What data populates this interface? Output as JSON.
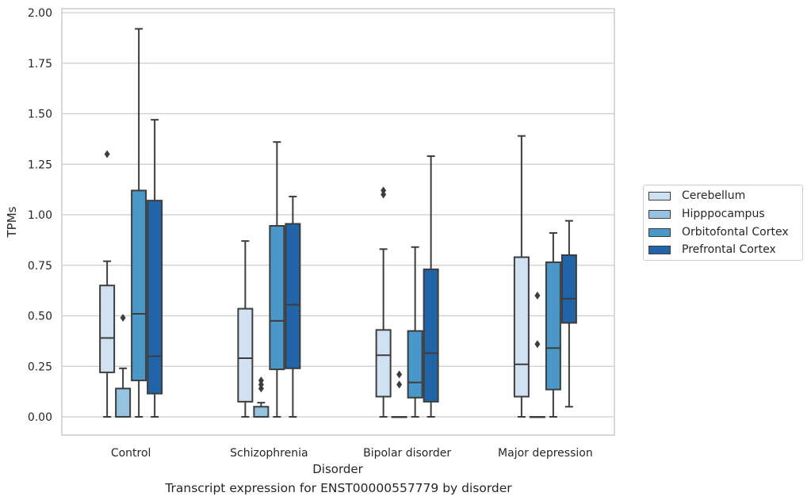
{
  "chart_data": {
    "type": "box",
    "title": "Transcript expression for ENST00000557779 by disorder",
    "xlabel": "Disorder",
    "ylabel": "TPMs",
    "ylim": [
      -0.09,
      2.02
    ],
    "yticks": [
      "0.00",
      "0.25",
      "0.50",
      "0.75",
      "1.00",
      "1.25",
      "1.50",
      "1.75",
      "2.00"
    ],
    "grid": true,
    "legend_placement": "right, outside plot",
    "categories": [
      "Control",
      "Schizophrenia",
      "Bipolar disorder",
      "Major depression"
    ],
    "series": [
      {
        "name": "Cerebellum",
        "color": "#d0e1f2",
        "boxes": [
          {
            "q1": 0.22,
            "median": 0.39,
            "q3": 0.65,
            "whisker_low": 0.0,
            "whisker_high": 0.77,
            "outliers": [
              1.3
            ]
          },
          {
            "q1": 0.075,
            "median": 0.29,
            "q3": 0.535,
            "whisker_low": 0.0,
            "whisker_high": 0.87,
            "outliers": []
          },
          {
            "q1": 0.1,
            "median": 0.305,
            "q3": 0.43,
            "whisker_low": 0.0,
            "whisker_high": 0.83,
            "outliers": [
              1.1,
              1.12
            ]
          },
          {
            "q1": 0.1,
            "median": 0.26,
            "q3": 0.79,
            "whisker_low": 0.0,
            "whisker_high": 1.39,
            "outliers": []
          }
        ]
      },
      {
        "name": "Hipppocampus",
        "color": "#94c4df",
        "boxes": [
          {
            "q1": 0.0,
            "median": 0.0,
            "q3": 0.14,
            "whisker_low": 0.0,
            "whisker_high": 0.24,
            "outliers": [
              0.49
            ]
          },
          {
            "q1": 0.0,
            "median": 0.0,
            "q3": 0.05,
            "whisker_low": 0.0,
            "whisker_high": 0.07,
            "outliers": [
              0.14,
              0.16,
              0.18
            ]
          },
          {
            "q1": 0.0,
            "median": 0.0,
            "q3": 0.0,
            "whisker_low": 0.0,
            "whisker_high": 0.0,
            "outliers": [
              0.16,
              0.21
            ]
          },
          {
            "q1": 0.0,
            "median": 0.0,
            "q3": 0.0,
            "whisker_low": 0.0,
            "whisker_high": 0.0,
            "outliers": [
              0.36,
              0.6
            ]
          }
        ]
      },
      {
        "name": "Orbitofontal Cortex",
        "color": "#4a98c9",
        "boxes": [
          {
            "q1": 0.18,
            "median": 0.51,
            "q3": 1.12,
            "whisker_low": 0.0,
            "whisker_high": 1.92,
            "outliers": []
          },
          {
            "q1": 0.235,
            "median": 0.475,
            "q3": 0.945,
            "whisker_low": 0.0,
            "whisker_high": 1.36,
            "outliers": []
          },
          {
            "q1": 0.095,
            "median": 0.17,
            "q3": 0.425,
            "whisker_low": 0.0,
            "whisker_high": 0.84,
            "outliers": []
          },
          {
            "q1": 0.135,
            "median": 0.34,
            "q3": 0.765,
            "whisker_low": 0.0,
            "whisker_high": 0.91,
            "outliers": []
          }
        ]
      },
      {
        "name": "Prefrontal Cortex",
        "color": "#2264a8",
        "boxes": [
          {
            "q1": 0.115,
            "median": 0.3,
            "q3": 1.07,
            "whisker_low": 0.0,
            "whisker_high": 1.47,
            "outliers": []
          },
          {
            "q1": 0.24,
            "median": 0.555,
            "q3": 0.955,
            "whisker_low": 0.0,
            "whisker_high": 1.09,
            "outliers": []
          },
          {
            "q1": 0.075,
            "median": 0.315,
            "q3": 0.73,
            "whisker_low": 0.0,
            "whisker_high": 1.29,
            "outliers": []
          },
          {
            "q1": 0.465,
            "median": 0.585,
            "q3": 0.8,
            "whisker_low": 0.05,
            "whisker_high": 0.97,
            "outliers": []
          }
        ]
      }
    ]
  }
}
